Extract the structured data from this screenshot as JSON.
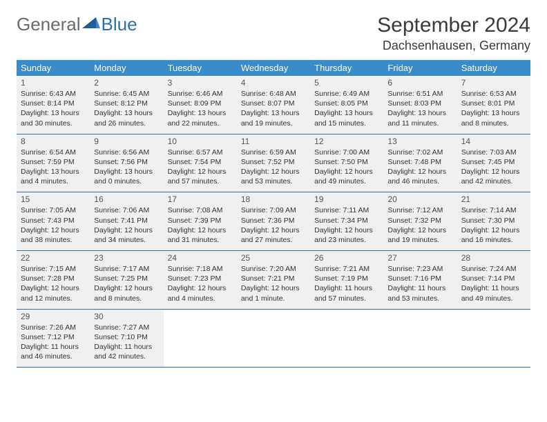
{
  "logo": {
    "general": "General",
    "blue": "Blue"
  },
  "title": "September 2024",
  "location": "Dachsenhausen, Germany",
  "colors": {
    "header_bg": "#3a8bc9",
    "header_text": "#ffffff",
    "rule": "#2f6fa8",
    "cell_bg": "#f0f0f0",
    "logo_gray": "#6b6b6b",
    "logo_blue": "#2f6fa8"
  },
  "day_headers": [
    "Sunday",
    "Monday",
    "Tuesday",
    "Wednesday",
    "Thursday",
    "Friday",
    "Saturday"
  ],
  "weeks": [
    [
      {
        "n": "1",
        "sr": "Sunrise: 6:43 AM",
        "ss": "Sunset: 8:14 PM",
        "d1": "Daylight: 13 hours",
        "d2": "and 30 minutes."
      },
      {
        "n": "2",
        "sr": "Sunrise: 6:45 AM",
        "ss": "Sunset: 8:12 PM",
        "d1": "Daylight: 13 hours",
        "d2": "and 26 minutes."
      },
      {
        "n": "3",
        "sr": "Sunrise: 6:46 AM",
        "ss": "Sunset: 8:09 PM",
        "d1": "Daylight: 13 hours",
        "d2": "and 22 minutes."
      },
      {
        "n": "4",
        "sr": "Sunrise: 6:48 AM",
        "ss": "Sunset: 8:07 PM",
        "d1": "Daylight: 13 hours",
        "d2": "and 19 minutes."
      },
      {
        "n": "5",
        "sr": "Sunrise: 6:49 AM",
        "ss": "Sunset: 8:05 PM",
        "d1": "Daylight: 13 hours",
        "d2": "and 15 minutes."
      },
      {
        "n": "6",
        "sr": "Sunrise: 6:51 AM",
        "ss": "Sunset: 8:03 PM",
        "d1": "Daylight: 13 hours",
        "d2": "and 11 minutes."
      },
      {
        "n": "7",
        "sr": "Sunrise: 6:53 AM",
        "ss": "Sunset: 8:01 PM",
        "d1": "Daylight: 13 hours",
        "d2": "and 8 minutes."
      }
    ],
    [
      {
        "n": "8",
        "sr": "Sunrise: 6:54 AM",
        "ss": "Sunset: 7:59 PM",
        "d1": "Daylight: 13 hours",
        "d2": "and 4 minutes."
      },
      {
        "n": "9",
        "sr": "Sunrise: 6:56 AM",
        "ss": "Sunset: 7:56 PM",
        "d1": "Daylight: 13 hours",
        "d2": "and 0 minutes."
      },
      {
        "n": "10",
        "sr": "Sunrise: 6:57 AM",
        "ss": "Sunset: 7:54 PM",
        "d1": "Daylight: 12 hours",
        "d2": "and 57 minutes."
      },
      {
        "n": "11",
        "sr": "Sunrise: 6:59 AM",
        "ss": "Sunset: 7:52 PM",
        "d1": "Daylight: 12 hours",
        "d2": "and 53 minutes."
      },
      {
        "n": "12",
        "sr": "Sunrise: 7:00 AM",
        "ss": "Sunset: 7:50 PM",
        "d1": "Daylight: 12 hours",
        "d2": "and 49 minutes."
      },
      {
        "n": "13",
        "sr": "Sunrise: 7:02 AM",
        "ss": "Sunset: 7:48 PM",
        "d1": "Daylight: 12 hours",
        "d2": "and 46 minutes."
      },
      {
        "n": "14",
        "sr": "Sunrise: 7:03 AM",
        "ss": "Sunset: 7:45 PM",
        "d1": "Daylight: 12 hours",
        "d2": "and 42 minutes."
      }
    ],
    [
      {
        "n": "15",
        "sr": "Sunrise: 7:05 AM",
        "ss": "Sunset: 7:43 PM",
        "d1": "Daylight: 12 hours",
        "d2": "and 38 minutes."
      },
      {
        "n": "16",
        "sr": "Sunrise: 7:06 AM",
        "ss": "Sunset: 7:41 PM",
        "d1": "Daylight: 12 hours",
        "d2": "and 34 minutes."
      },
      {
        "n": "17",
        "sr": "Sunrise: 7:08 AM",
        "ss": "Sunset: 7:39 PM",
        "d1": "Daylight: 12 hours",
        "d2": "and 31 minutes."
      },
      {
        "n": "18",
        "sr": "Sunrise: 7:09 AM",
        "ss": "Sunset: 7:36 PM",
        "d1": "Daylight: 12 hours",
        "d2": "and 27 minutes."
      },
      {
        "n": "19",
        "sr": "Sunrise: 7:11 AM",
        "ss": "Sunset: 7:34 PM",
        "d1": "Daylight: 12 hours",
        "d2": "and 23 minutes."
      },
      {
        "n": "20",
        "sr": "Sunrise: 7:12 AM",
        "ss": "Sunset: 7:32 PM",
        "d1": "Daylight: 12 hours",
        "d2": "and 19 minutes."
      },
      {
        "n": "21",
        "sr": "Sunrise: 7:14 AM",
        "ss": "Sunset: 7:30 PM",
        "d1": "Daylight: 12 hours",
        "d2": "and 16 minutes."
      }
    ],
    [
      {
        "n": "22",
        "sr": "Sunrise: 7:15 AM",
        "ss": "Sunset: 7:28 PM",
        "d1": "Daylight: 12 hours",
        "d2": "and 12 minutes."
      },
      {
        "n": "23",
        "sr": "Sunrise: 7:17 AM",
        "ss": "Sunset: 7:25 PM",
        "d1": "Daylight: 12 hours",
        "d2": "and 8 minutes."
      },
      {
        "n": "24",
        "sr": "Sunrise: 7:18 AM",
        "ss": "Sunset: 7:23 PM",
        "d1": "Daylight: 12 hours",
        "d2": "and 4 minutes."
      },
      {
        "n": "25",
        "sr": "Sunrise: 7:20 AM",
        "ss": "Sunset: 7:21 PM",
        "d1": "Daylight: 12 hours",
        "d2": "and 1 minute."
      },
      {
        "n": "26",
        "sr": "Sunrise: 7:21 AM",
        "ss": "Sunset: 7:19 PM",
        "d1": "Daylight: 11 hours",
        "d2": "and 57 minutes."
      },
      {
        "n": "27",
        "sr": "Sunrise: 7:23 AM",
        "ss": "Sunset: 7:16 PM",
        "d1": "Daylight: 11 hours",
        "d2": "and 53 minutes."
      },
      {
        "n": "28",
        "sr": "Sunrise: 7:24 AM",
        "ss": "Sunset: 7:14 PM",
        "d1": "Daylight: 11 hours",
        "d2": "and 49 minutes."
      }
    ],
    [
      {
        "n": "29",
        "sr": "Sunrise: 7:26 AM",
        "ss": "Sunset: 7:12 PM",
        "d1": "Daylight: 11 hours",
        "d2": "and 46 minutes."
      },
      {
        "n": "30",
        "sr": "Sunrise: 7:27 AM",
        "ss": "Sunset: 7:10 PM",
        "d1": "Daylight: 11 hours",
        "d2": "and 42 minutes."
      },
      null,
      null,
      null,
      null,
      null
    ]
  ]
}
